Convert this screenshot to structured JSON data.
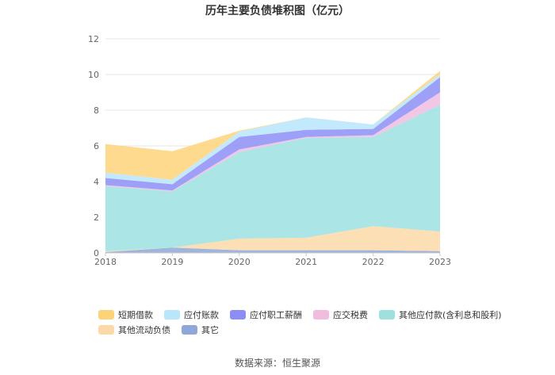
{
  "chart_data": {
    "type": "area",
    "title": "历年主要负债堆积图（亿元）",
    "source_note": "数据来源：恒生聚源",
    "x": [
      "2018",
      "2019",
      "2020",
      "2021",
      "2022",
      "2023"
    ],
    "ylim": [
      0,
      12
    ],
    "yticks": [
      "0",
      "2",
      "4",
      "6",
      "8",
      "10",
      "12"
    ],
    "grid": true,
    "stacked": true,
    "legend_position": "bottom",
    "series": [
      {
        "name": "其它",
        "color": "#8fa8d8",
        "values": [
          0.05,
          0.3,
          0.15,
          0.15,
          0.15,
          0.1
        ]
      },
      {
        "name": "其他流动负债",
        "color": "#fcd9a8",
        "values": [
          0.05,
          0.0,
          0.65,
          0.7,
          1.35,
          1.1
        ]
      },
      {
        "name": "其他应付款(含利息和股利)",
        "color": "#9ee0e0",
        "values": [
          3.65,
          3.15,
          4.85,
          5.6,
          5.0,
          7.1
        ]
      },
      {
        "name": "应交税费",
        "color": "#f0bde0",
        "values": [
          0.05,
          0.05,
          0.15,
          0.05,
          0.1,
          0.7
        ]
      },
      {
        "name": "应付职工薪酬",
        "color": "#8d8ef5",
        "values": [
          0.4,
          0.35,
          0.7,
          0.4,
          0.35,
          0.85
        ]
      },
      {
        "name": "应付账款",
        "color": "#b8e6fb",
        "values": [
          0.3,
          0.25,
          0.3,
          0.7,
          0.25,
          0.15
        ]
      },
      {
        "name": "短期借款",
        "color": "#fdd37a",
        "values": [
          1.6,
          1.6,
          0.05,
          0.0,
          0.0,
          0.2
        ]
      }
    ],
    "legend_order": [
      "短期借款",
      "应付账款",
      "应付职工薪酬",
      "应交税费",
      "其他应付款(含利息和股利)",
      "其他流动负债",
      "其它"
    ]
  }
}
